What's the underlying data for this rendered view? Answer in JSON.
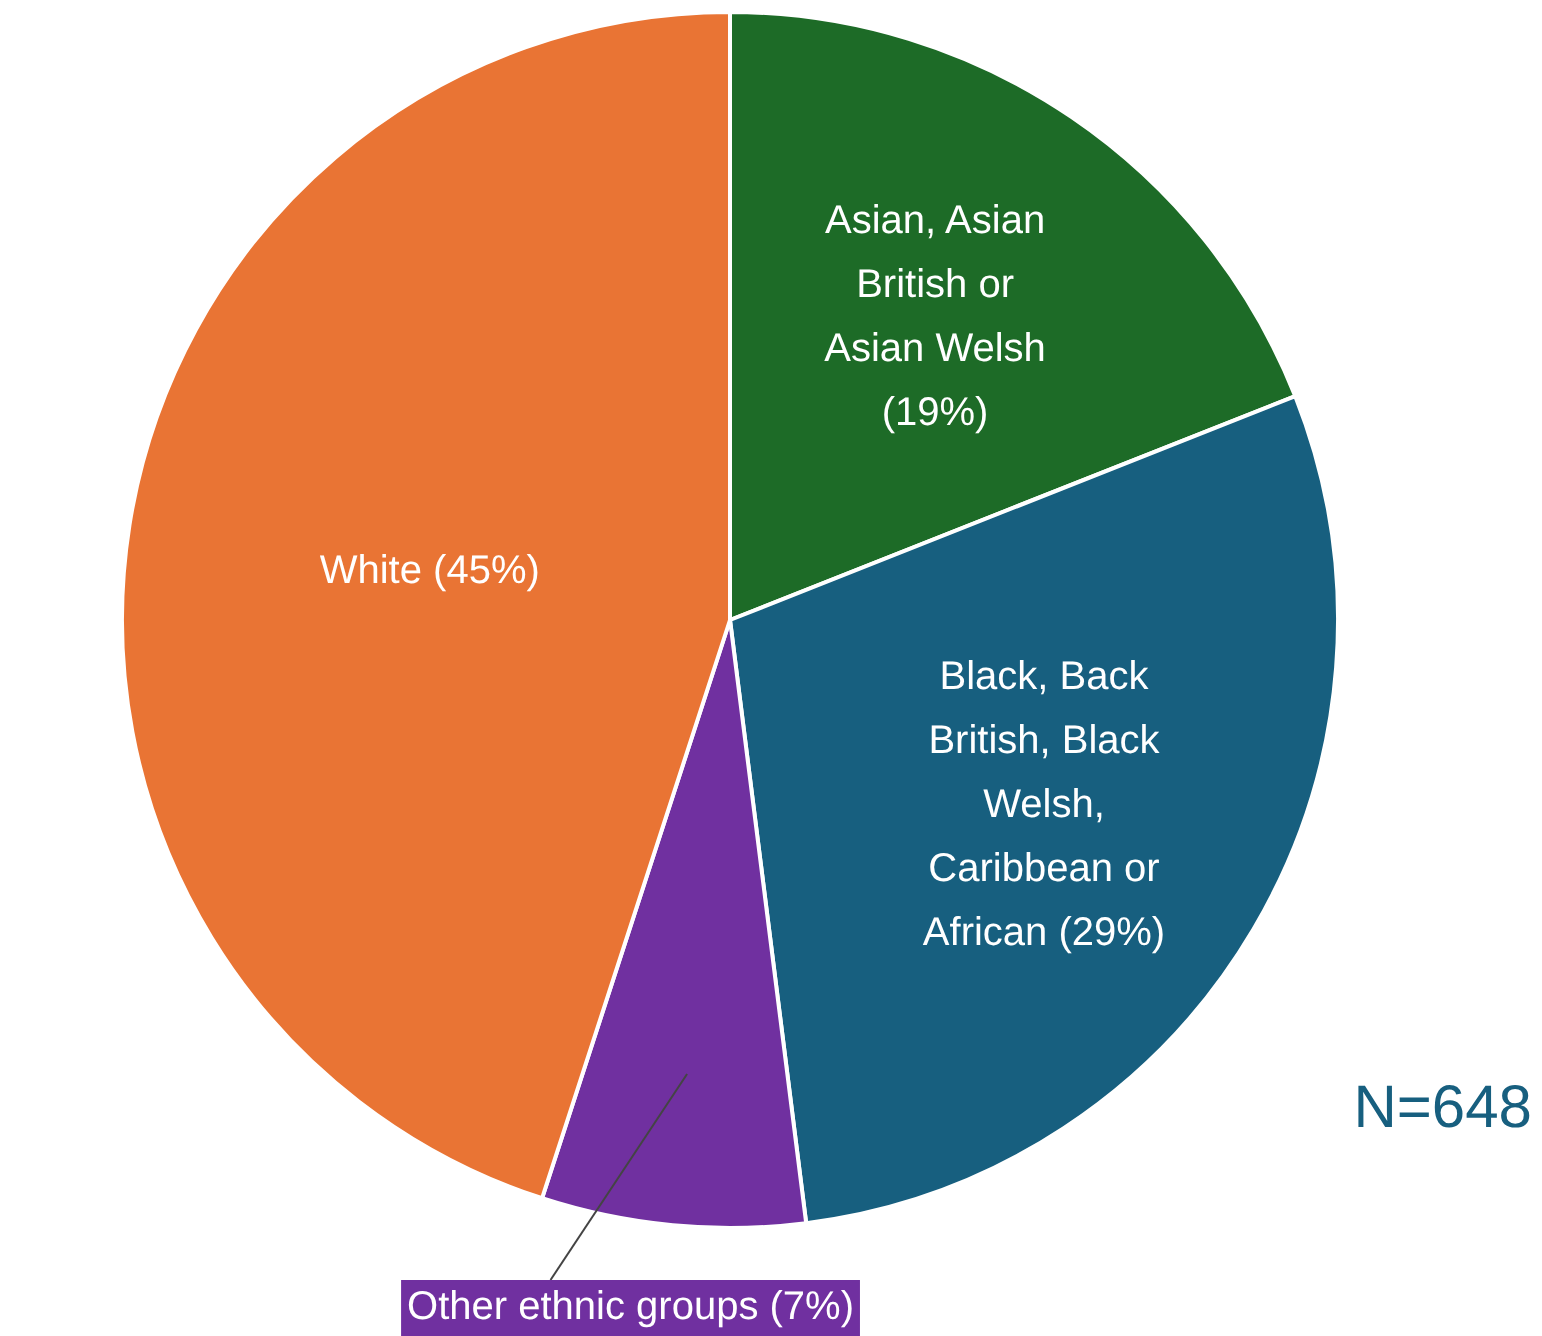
{
  "chart_data": {
    "type": "pie",
    "categories": [
      "Asian, Asian British or Asian Welsh (19%)",
      "Black, Back British, Black Welsh, Caribbean or African (29%)",
      "Other ethnic groups (7%)",
      "White (45%)"
    ],
    "values": [
      19,
      29,
      7,
      45
    ],
    "colors": [
      "#1d6b27",
      "#175f7f",
      "#7030a0",
      "#e97434"
    ],
    "annotations": [
      "N=648"
    ],
    "legend": false
  }
}
